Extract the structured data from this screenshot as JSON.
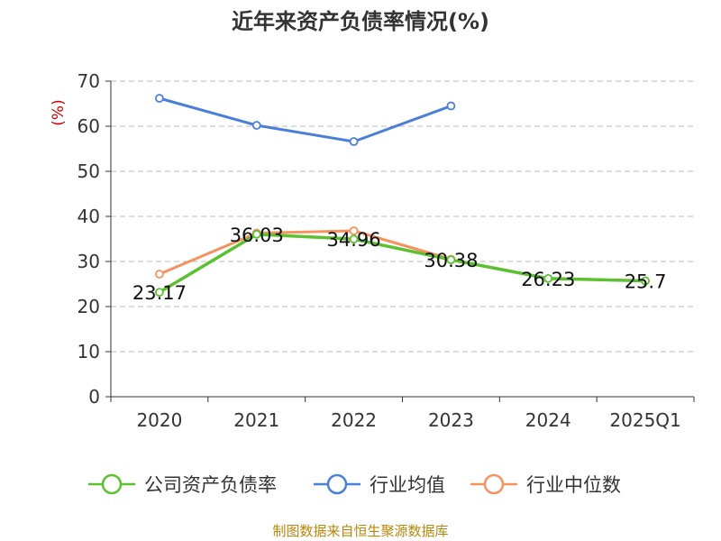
{
  "title": "近年来资产负债率情况(%)",
  "source": "制图数据来自恒生聚源数据库",
  "chart_data": {
    "type": "line",
    "title": "近年来资产负债率情况(%)",
    "ylabel": "(%)",
    "xlabel": "",
    "categories": [
      "2020",
      "2021",
      "2022",
      "2023",
      "2024",
      "2025Q1"
    ],
    "ylim": [
      0,
      70
    ],
    "yticks": [
      0,
      10,
      20,
      30,
      40,
      50,
      60,
      70
    ],
    "grid": true,
    "legend_position": "bottom",
    "series": [
      {
        "name": "公司资产负债率",
        "color": "#5cc130",
        "values": [
          23.17,
          36.03,
          34.96,
          30.38,
          26.23,
          25.7
        ],
        "labels": [
          "23.17",
          "36.03",
          "34.96",
          "30.38",
          "26.23",
          "25.7"
        ]
      },
      {
        "name": "行业均值",
        "color": "#4a7fd9",
        "values": [
          66.2,
          60.2,
          56.6,
          64.5,
          null,
          null
        ]
      },
      {
        "name": "行业中位数",
        "color": "#f59260",
        "values": [
          27.2,
          36.3,
          36.8,
          30.5,
          null,
          null
        ]
      }
    ]
  }
}
